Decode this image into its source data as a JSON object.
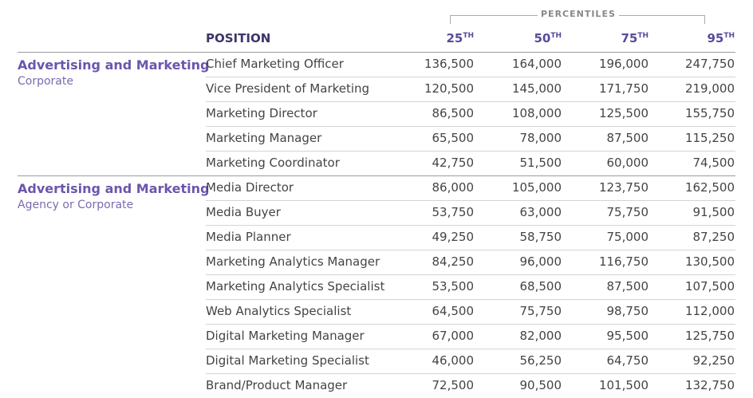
{
  "header": {
    "percentiles_label": "PERCENTILES",
    "position_label": "POSITION",
    "columns": [
      {
        "number": "25",
        "suffix": "TH"
      },
      {
        "number": "50",
        "suffix": "TH"
      },
      {
        "number": "75",
        "suffix": "TH"
      },
      {
        "number": "95",
        "suffix": "TH"
      }
    ]
  },
  "groups": [
    {
      "title": "Advertising and Marketing",
      "subtitle": "Corporate",
      "rows": [
        [
          "Chief Marketing Officer",
          "136,500",
          "164,000",
          "196,000",
          "247,750"
        ],
        [
          "Vice President of Marketing",
          "120,500",
          "145,000",
          "171,750",
          "219,000"
        ],
        [
          "Marketing Director",
          "86,500",
          "108,000",
          "125,500",
          "155,750"
        ],
        [
          "Marketing Manager",
          "65,500",
          "78,000",
          "87,500",
          "115,250"
        ],
        [
          "Marketing Coordinator",
          "42,750",
          "51,500",
          "60,000",
          "74,500"
        ]
      ]
    },
    {
      "title": "Advertising and Marketing",
      "subtitle": "Agency or Corporate",
      "rows": [
        [
          "Media Director",
          "86,000",
          "105,000",
          "123,750",
          "162,500"
        ],
        [
          "Media Buyer",
          "53,750",
          "63,000",
          "75,750",
          "91,500"
        ],
        [
          "Media Planner",
          "49,250",
          "58,750",
          "75,000",
          "87,250"
        ],
        [
          "Marketing Analytics Manager",
          "84,250",
          "96,000",
          "116,750",
          "130,500"
        ],
        [
          "Marketing Analytics Specialist",
          "53,500",
          "68,500",
          "87,500",
          "107,500"
        ],
        [
          "Web Analytics Specialist",
          "64,500",
          "75,750",
          "98,750",
          "112,000"
        ],
        [
          "Digital Marketing Manager",
          "67,000",
          "82,000",
          "95,500",
          "125,750"
        ],
        [
          "Digital Marketing Specialist",
          "46,000",
          "56,250",
          "64,750",
          "92,250"
        ],
        [
          "Brand/Product Manager",
          "72,500",
          "90,500",
          "101,500",
          "132,750"
        ]
      ]
    }
  ]
}
